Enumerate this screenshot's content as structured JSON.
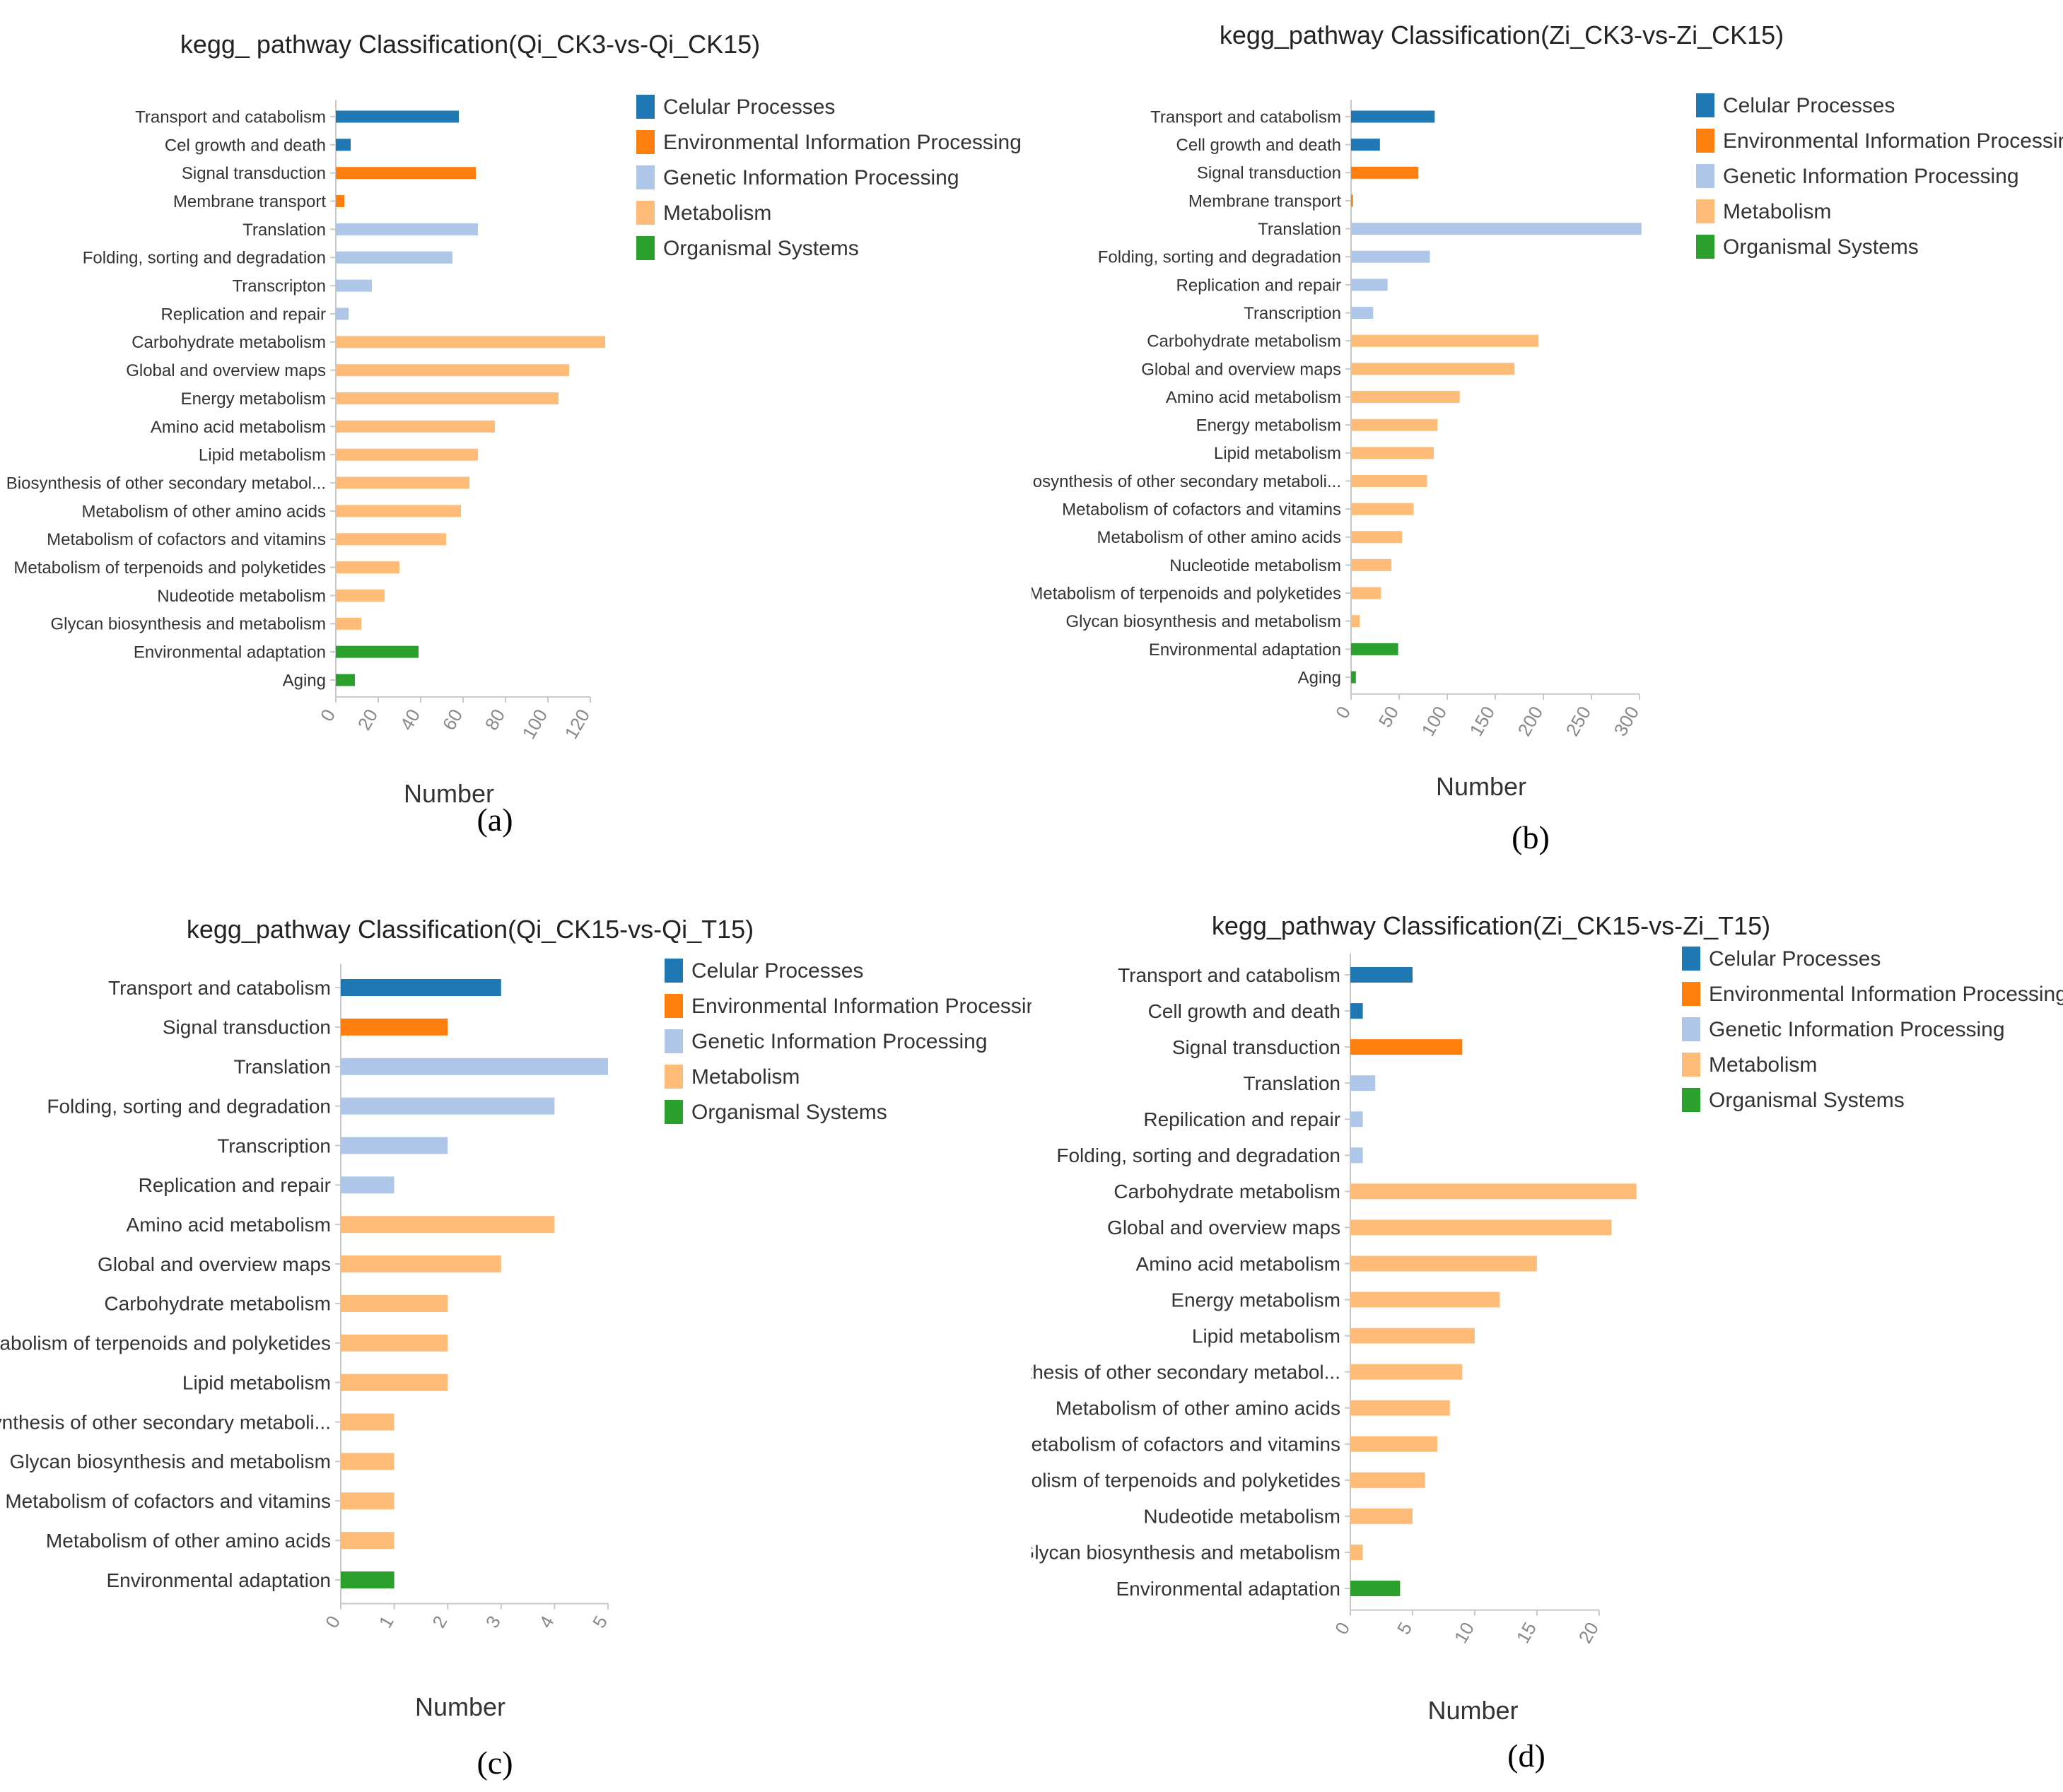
{
  "chart_data": [
    {
      "type": "bar",
      "orientation": "horizontal",
      "panel": "a",
      "caption": "(a)",
      "title": "kegg_ pathway Classification(Qi_CK3-vs-Qi_CK15)",
      "xlabel": "Number",
      "ylabel": "",
      "xlim": [
        0,
        120
      ],
      "xticks": [
        0,
        20,
        40,
        60,
        80,
        100,
        120
      ],
      "legend": [
        {
          "name": "Celular Processes",
          "color": "#1f77b4"
        },
        {
          "name": "Environmental Information Processing",
          "color": "#ff7f0e"
        },
        {
          "name": "Genetic Information Processing",
          "color": "#aec7e8"
        },
        {
          "name": "Metabolism",
          "color": "#ffbb78"
        },
        {
          "name": "Organismal Systems",
          "color": "#2ca02c"
        }
      ],
      "categories": [
        "Transport and catabolism",
        "Cel growth and death",
        "Signal transduction",
        "Membrane transport",
        "Translation",
        "Folding, sorting and degradation",
        "Transcripton",
        "Replication and repair",
        "Carbohydrate metabolism",
        "Global and overview maps",
        "Energy metabolism",
        "Amino acid metabolism",
        "Lipid metabolism",
        "Biosynthesis of other secondary metabol...",
        "Metabolism of other amino acids",
        "Metabolism of cofactors and vitamins",
        "Metabolism of terpenoids and polyketides",
        "Nudeotide metabolism",
        "Glycan biosynthesis and metabolism",
        "Environmental adaptation",
        "Aging"
      ],
      "values": [
        58,
        7,
        66,
        4,
        67,
        55,
        17,
        6,
        127,
        110,
        105,
        75,
        67,
        63,
        59,
        52,
        30,
        23,
        12,
        39,
        9
      ],
      "groups": [
        0,
        0,
        1,
        1,
        2,
        2,
        2,
        2,
        3,
        3,
        3,
        3,
        3,
        3,
        3,
        3,
        3,
        3,
        3,
        4,
        4
      ]
    },
    {
      "type": "bar",
      "orientation": "horizontal",
      "panel": "b",
      "caption": "(b)",
      "title": "kegg_pathway Classification(Zi_CK3-vs-Zi_CK15)",
      "xlabel": "Number",
      "ylabel": "",
      "xlim": [
        0,
        300
      ],
      "xticks": [
        0,
        50,
        100,
        150,
        200,
        250,
        300
      ],
      "legend": [
        {
          "name": "Celular Processes",
          "color": "#1f77b4"
        },
        {
          "name": "Environmental Information Processing",
          "color": "#ff7f0e"
        },
        {
          "name": "Genetic Information Processing",
          "color": "#aec7e8"
        },
        {
          "name": "Metabolism",
          "color": "#ffbb78"
        },
        {
          "name": "Organismal Systems",
          "color": "#2ca02c"
        }
      ],
      "categories": [
        "Transport and catabolism",
        "Cell growth and death",
        "Signal transduction",
        "Membrane transport",
        "Translation",
        "Folding, sorting and degradation",
        "Replication and repair",
        "Transcription",
        "Carbohydrate metabolism",
        "Global and overview maps",
        "Amino acid metabolism",
        "Energy metabolism",
        "Lipid metabolism",
        "Biosynthesis of other secondary metaboli...",
        "Metabolism of cofactors and vitamins",
        "Metabolism of other amino acids",
        "Nucleotide metabolism",
        "Metabolism of terpenoids and polyketides",
        "Glycan biosynthesis and metabolism",
        "Environmental adaptation",
        "Aging"
      ],
      "values": [
        87,
        30,
        70,
        2,
        302,
        82,
        38,
        23,
        195,
        170,
        113,
        90,
        86,
        79,
        65,
        53,
        42,
        31,
        9,
        49,
        5
      ],
      "groups": [
        0,
        0,
        1,
        1,
        2,
        2,
        2,
        2,
        3,
        3,
        3,
        3,
        3,
        3,
        3,
        3,
        3,
        3,
        3,
        4,
        4
      ]
    },
    {
      "type": "bar",
      "orientation": "horizontal",
      "panel": "c",
      "caption": "(c)",
      "title": "kegg_pathway Classification(Qi_CK15-vs-Qi_T15)",
      "xlabel": "Number",
      "ylabel": "",
      "xlim": [
        0,
        5
      ],
      "xticks": [
        0,
        1,
        2,
        3,
        4,
        5
      ],
      "legend": [
        {
          "name": "Celular Processes",
          "color": "#1f77b4"
        },
        {
          "name": "Environmental Information Processing",
          "color": "#ff7f0e"
        },
        {
          "name": "Genetic Information Processing",
          "color": "#aec7e8"
        },
        {
          "name": "Metabolism",
          "color": "#ffbb78"
        },
        {
          "name": "Organismal Systems",
          "color": "#2ca02c"
        }
      ],
      "categories": [
        "Transport and catabolism",
        "Signal transduction",
        "Translation",
        "Folding, sorting and degradation",
        "Transcription",
        "Replication and repair",
        "Amino acid metabolism",
        "Global and overview maps",
        "Carbohydrate metabolism",
        "Metabolism of terpenoids and polyketides",
        "Lipid metabolism",
        "Biosynthesis of other secondary metaboli...",
        "Glycan biosynthesis and metabolism",
        "Metabolism of cofactors and vitamins",
        "Metabolism of other amino acids",
        "Environmental adaptation"
      ],
      "values": [
        3,
        2,
        5,
        4,
        2,
        1,
        4,
        3,
        2,
        2,
        2,
        1,
        1,
        1,
        1,
        1
      ],
      "groups": [
        0,
        1,
        2,
        2,
        2,
        2,
        3,
        3,
        3,
        3,
        3,
        3,
        3,
        3,
        3,
        4
      ]
    },
    {
      "type": "bar",
      "orientation": "horizontal",
      "panel": "d",
      "caption": "(d)",
      "title": "kegg_pathway Classification(Zi_CK15-vs-Zi_T15)",
      "xlabel": "Number",
      "ylabel": "",
      "xlim": [
        0,
        22
      ],
      "xticks": [
        0,
        5,
        10,
        15,
        20
      ],
      "legend": [
        {
          "name": "Celular Processes",
          "color": "#1f77b4"
        },
        {
          "name": "Environmental Information Processing",
          "color": "#ff7f0e"
        },
        {
          "name": "Genetic Information Processing",
          "color": "#aec7e8"
        },
        {
          "name": "Metabolism",
          "color": "#ffbb78"
        },
        {
          "name": "Organismal Systems",
          "color": "#2ca02c"
        }
      ],
      "categories": [
        "Transport and catabolism",
        "Cell growth and death",
        "Signal transduction",
        "Translation",
        "Repilication and repair",
        "Folding, sorting and degradation",
        "Carbohydrate metabolism",
        "Global and overview maps",
        "Amino acid metabolism",
        "Energy metabolism",
        "Lipid metabolism",
        "Biosynthesis of other secondary metabol...",
        "Metabolism of other amino acids",
        "Metabolism of cofactors and vitamins",
        "Metabolism of terpenoids and polyketides",
        "Nudeotide metabolism",
        "Glycan biosynthesis and metabolism",
        "Environmental adaptation"
      ],
      "values": [
        5,
        1,
        9,
        2,
        1,
        1,
        23,
        21,
        15,
        12,
        10,
        9,
        8,
        7,
        6,
        5,
        1,
        4
      ],
      "groups": [
        0,
        0,
        1,
        2,
        2,
        2,
        3,
        3,
        3,
        3,
        3,
        3,
        3,
        3,
        3,
        3,
        3,
        4
      ]
    }
  ]
}
